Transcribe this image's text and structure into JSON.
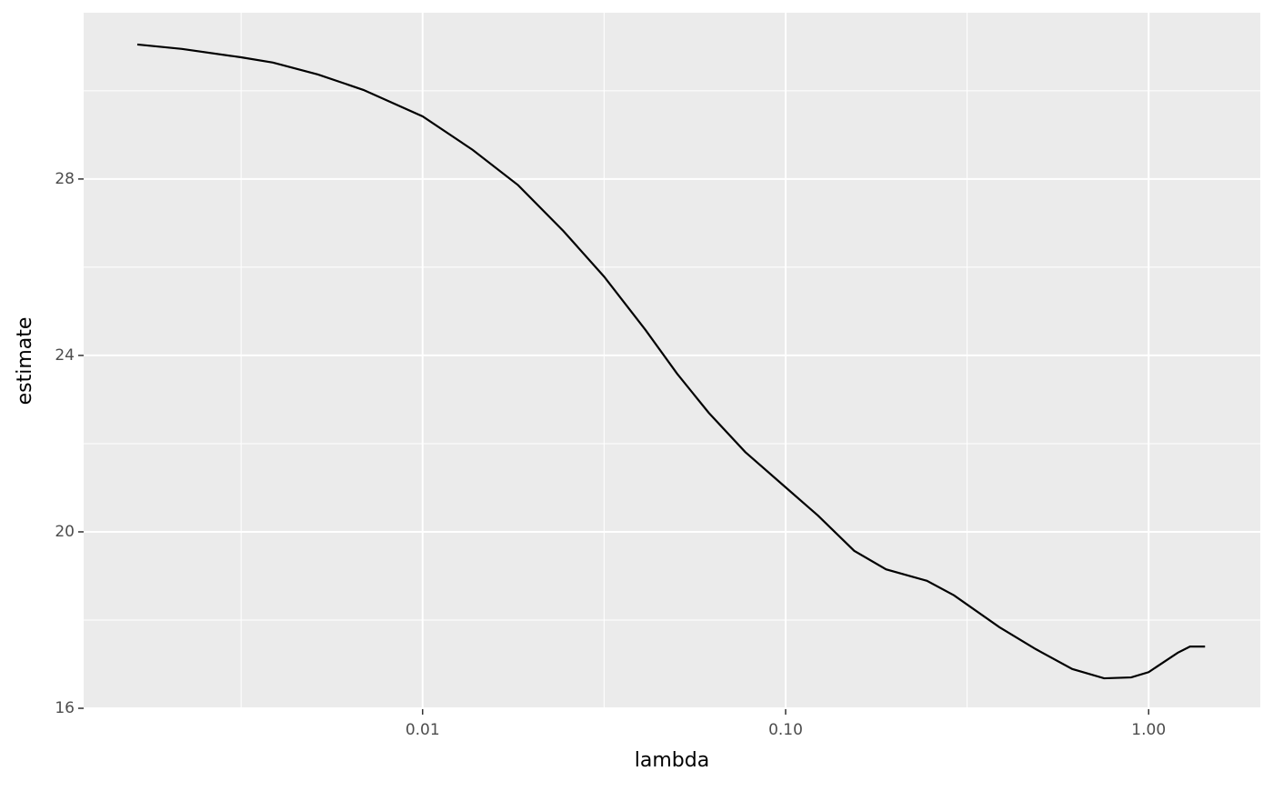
{
  "chart_data": {
    "type": "line",
    "x_label": "lambda",
    "y_label": "estimate",
    "x": [
      0.001637,
      0.002173,
      0.00316,
      0.00387,
      0.00515,
      0.00687,
      0.01,
      0.01374,
      0.01833,
      0.02443,
      0.0316,
      0.0411,
      0.0502,
      0.0614,
      0.0774,
      0.1,
      0.1228,
      0.1545,
      0.1891,
      0.245,
      0.291,
      0.388,
      0.489,
      0.616,
      0.754,
      0.895,
      1.0,
      1.203,
      1.3,
      1.43
    ],
    "values": [
      31.05,
      30.95,
      30.76,
      30.64,
      30.37,
      30.02,
      29.42,
      28.66,
      27.86,
      26.82,
      25.79,
      24.58,
      23.59,
      22.7,
      21.81,
      21.01,
      20.37,
      19.57,
      19.15,
      18.89,
      18.56,
      17.84,
      17.34,
      16.89,
      16.68,
      16.7,
      16.82,
      17.26,
      17.4,
      17.4
    ],
    "color": "#000000",
    "xlim": [
      0.001165,
      2.03
    ],
    "x_log": true,
    "xticks": [
      {
        "value": 0.01,
        "label": "0.01"
      },
      {
        "value": 0.1,
        "label": "0.10"
      },
      {
        "value": 1,
        "label": "1.00"
      }
    ],
    "ylim": [
      15.98,
      31.77
    ],
    "yticks": [
      16,
      20,
      24,
      28
    ],
    "grid": true,
    "background": "#ebebeb"
  }
}
